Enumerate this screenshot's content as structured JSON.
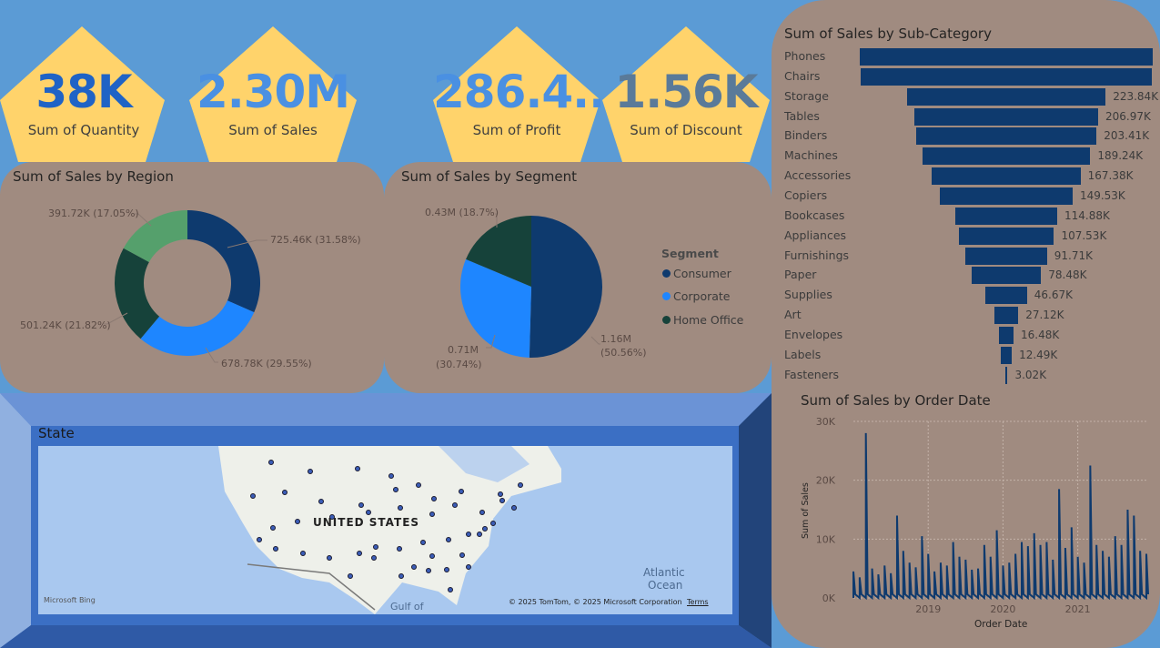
{
  "kpis": [
    {
      "value": "38K",
      "label": "Sum of Quantity",
      "color": "#1f63c6"
    },
    {
      "value": "2.30M",
      "label": "Sum of Sales",
      "color": "#4a90e2"
    },
    {
      "value": "286.4...",
      "label": "Sum of Profit",
      "color": "#4a90e2"
    },
    {
      "value": "1.56K",
      "label": "Sum of Discount",
      "color": "#5a7a99"
    }
  ],
  "region_chart": {
    "title": "Sum of Sales by Region",
    "type": "donut",
    "slices": [
      {
        "value": 725.46,
        "label": "725.46K (31.58%)",
        "color": "#0e3a6e"
      },
      {
        "value": 678.78,
        "label": "678.78K (29.55%)",
        "color": "#1e86ff"
      },
      {
        "value": 501.24,
        "label": "501.24K (21.82%)",
        "color": "#16423a"
      },
      {
        "value": 391.72,
        "label": "391.72K (17.05%)",
        "color": "#55a06c"
      }
    ]
  },
  "segment_chart": {
    "title": "Sum of Sales by Segment",
    "legend_title": "Segment",
    "slices": [
      {
        "name": "Consumer",
        "value": 1.16,
        "label_line1": "1.16M",
        "label_line2": "(50.56%)",
        "color": "#0e3a6e"
      },
      {
        "name": "Corporate",
        "value": 0.71,
        "label_line1": "0.71M",
        "label_line2": "(30.74%)",
        "color": "#1e86ff"
      },
      {
        "name": "Home Office",
        "value": 0.43,
        "label_line1": "0.43M (18.7%)",
        "label_line2": "",
        "color": "#16423a"
      }
    ]
  },
  "subcategory_chart": {
    "title": "Sum of Sales by Sub-Category",
    "type": "bar",
    "bar_color": "#0e3a6e",
    "rows": [
      {
        "name": "Phones",
        "value": 330.01,
        "label": ""
      },
      {
        "name": "Chairs",
        "value": 328.45,
        "label": ""
      },
      {
        "name": "Storage",
        "value": 223.84,
        "label": "223.84K"
      },
      {
        "name": "Tables",
        "value": 206.97,
        "label": "206.97K"
      },
      {
        "name": "Binders",
        "value": 203.41,
        "label": "203.41K"
      },
      {
        "name": "Machines",
        "value": 189.24,
        "label": "189.24K"
      },
      {
        "name": "Accessories",
        "value": 167.38,
        "label": "167.38K"
      },
      {
        "name": "Copiers",
        "value": 149.53,
        "label": "149.53K"
      },
      {
        "name": "Bookcases",
        "value": 114.88,
        "label": "114.88K"
      },
      {
        "name": "Appliances",
        "value": 107.53,
        "label": "107.53K"
      },
      {
        "name": "Furnishings",
        "value": 91.71,
        "label": "91.71K"
      },
      {
        "name": "Paper",
        "value": 78.48,
        "label": "78.48K"
      },
      {
        "name": "Supplies",
        "value": 46.67,
        "label": "46.67K"
      },
      {
        "name": "Art",
        "value": 27.12,
        "label": "27.12K"
      },
      {
        "name": "Envelopes",
        "value": 16.48,
        "label": "16.48K"
      },
      {
        "name": "Labels",
        "value": 12.49,
        "label": "12.49K"
      },
      {
        "name": "Fasteners",
        "value": 3.02,
        "label": "3.02K"
      }
    ]
  },
  "chart_data": {
    "type": "line",
    "title": "Sum of Sales by Order Date",
    "xlabel": "Order Date",
    "ylabel": "Sum of Sales",
    "ylim": [
      0,
      30000
    ],
    "y_ticks": [
      "30K",
      "20K",
      "10K",
      "0K"
    ],
    "x_ticks": [
      "2019",
      "2020",
      "2021"
    ],
    "grid": true,
    "series": [
      {
        "color": "#0e3a6e",
        "x": [
          "2018-01",
          "2018-02",
          "2018-03",
          "2018-04",
          "2018-05",
          "2018-06",
          "2018-07",
          "2018-08",
          "2018-09",
          "2018-10",
          "2018-11",
          "2018-12",
          "2019-01",
          "2019-02",
          "2019-03",
          "2019-04",
          "2019-05",
          "2019-06",
          "2019-07",
          "2019-08",
          "2019-09",
          "2019-10",
          "2019-11",
          "2019-12",
          "2020-01",
          "2020-02",
          "2020-03",
          "2020-04",
          "2020-05",
          "2020-06",
          "2020-07",
          "2020-08",
          "2020-09",
          "2020-10",
          "2020-11",
          "2020-12",
          "2021-01",
          "2021-02",
          "2021-03",
          "2021-04",
          "2021-05",
          "2021-06",
          "2021-07",
          "2021-08",
          "2021-09",
          "2021-10",
          "2021-11",
          "2021-12"
        ],
        "y": [
          4500,
          3500,
          28000,
          5000,
          4000,
          5500,
          4200,
          14000,
          8000,
          6000,
          5200,
          10500,
          7500,
          4500,
          6000,
          5500,
          9500,
          7000,
          6500,
          4800,
          5000,
          9000,
          7000,
          11500,
          5500,
          6000,
          7500,
          9500,
          8800,
          11000,
          9000,
          9500,
          6500,
          18500,
          8500,
          12000,
          7000,
          6000,
          22500,
          9000,
          8000,
          7000,
          10500,
          9000,
          15000,
          14000,
          8000,
          7500
        ]
      }
    ]
  },
  "map": {
    "title": "State",
    "country_label": "UNITED STATES",
    "ocean_label_1": "Atlantic",
    "ocean_label_2": "Ocean",
    "gulf_label": "Gulf of",
    "copyright": "© 2025 TomTom, © 2025 Microsoft Corporation",
    "terms": "Terms",
    "bing": "Microsoft Bing"
  }
}
